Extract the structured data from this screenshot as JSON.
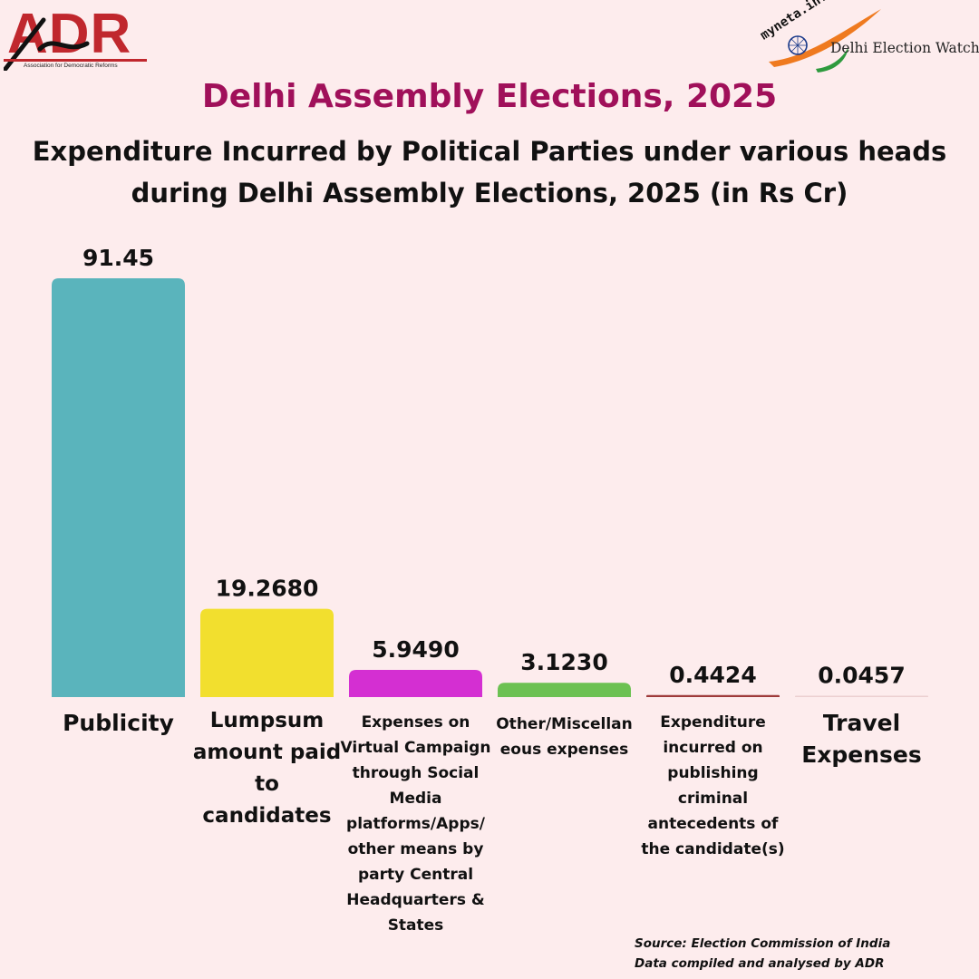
{
  "logos": {
    "adr": {
      "name": "ADR",
      "tagline": "Association for Democratic Reforms"
    },
    "myneta": {
      "name": "myneta.info",
      "tagline": "Delhi Election Watch"
    }
  },
  "header": {
    "title": "Delhi Assembly Elections, 2025",
    "subtitle_line1": "Expenditure Incurred by Political Parties under various heads",
    "subtitle_line2": "during Delhi Assembly Elections, 2025 (in Rs Cr)"
  },
  "colors": {
    "background": "#fdeced",
    "title": "#a0105a",
    "brand_red": "#c0272d"
  },
  "chart_data": {
    "type": "bar",
    "title": "Expenditure Incurred by Political Parties under various heads during Delhi Assembly Elections, 2025 (in Rs Cr)",
    "xlabel": "",
    "ylabel": "",
    "grid": false,
    "legend": "none",
    "ylim": [
      0,
      91.45
    ],
    "categories": [
      "Publicity",
      "Lumpsum amount paid to candidates",
      "Expenses on Virtual Campaign through Social Media platforms/Apps/ other means by party Central Headquarters & States",
      "Other/Miscellan eous expenses",
      "Expenditure incurred on publishing criminal antecedents of the candidate(s)",
      "Travel Expenses"
    ],
    "values": [
      91.45,
      19.268,
      5.949,
      3.123,
      0.4424,
      0.0457
    ],
    "value_labels": [
      "91.45",
      "19.2680",
      "5.9490",
      "3.1230",
      "0.4424",
      "0.0457"
    ],
    "bar_colors": [
      "#5ab4bc",
      "#f2df2e",
      "#d42fd2",
      "#6cc152",
      "#9e3a3a",
      "#eccfd0"
    ]
  },
  "footer": {
    "source_line1": "Source: Election Commission of India",
    "source_line2": "Data compiled and analysed by ADR"
  }
}
